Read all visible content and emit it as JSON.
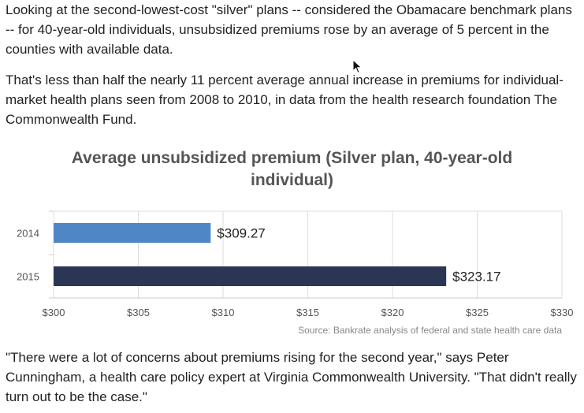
{
  "article": {
    "paragraph_1": "Looking at the second-lowest-cost \"silver\" plans -- considered the Obamacare benchmark plans -- for 40-year-old individuals, unsubsidized premiums rose by an average of 5 percent in the counties with available data.",
    "paragraph_2": "That's less than half the nearly 11 percent average annual increase in premiums for individual-market health plans seen from 2008 to 2010, in data from the health research foundation The Commonwealth Fund.",
    "paragraph_3": "\"There were a lot of concerns about premiums rising for the second year,\" says Peter Cunningham, a health care policy expert at Virginia Commonwealth University. \"That didn't really turn out to be the case.\""
  },
  "chart_data": {
    "type": "bar",
    "orientation": "horizontal",
    "title": "Average unsubsidized premium (Silver plan, 40-year-old individual)",
    "source": "Source: Bankrate analysis of federal and state health care data",
    "categories": [
      "2014",
      "2015"
    ],
    "values": [
      309.27,
      323.17
    ],
    "value_labels": [
      "$309.27",
      "$323.17"
    ],
    "bar_colors": [
      "#4f86c6",
      "#2b3654"
    ],
    "xlim": [
      300,
      330
    ],
    "xticks": [
      300,
      305,
      310,
      315,
      320,
      325,
      330
    ],
    "xtick_labels": [
      "$300",
      "$305",
      "$310",
      "$315",
      "$320",
      "$325",
      "$330"
    ],
    "grid": true,
    "legend": false
  },
  "cursor": {
    "icon": "mouse-pointer-icon"
  }
}
